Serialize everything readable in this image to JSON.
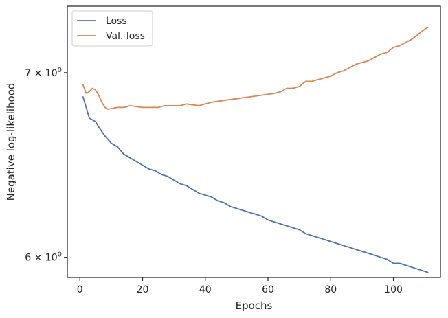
{
  "chart_data": {
    "type": "line",
    "xlabel": "Epochs",
    "ylabel": "Negative log-likelihood",
    "yscale": "log",
    "xlim": [
      -4,
      115
    ],
    "ylim": [
      5.9,
      7.4
    ],
    "x_ticks": [
      0,
      20,
      40,
      60,
      80,
      100
    ],
    "x_tick_labels": [
      "0",
      "20",
      "40",
      "60",
      "80",
      "100"
    ],
    "y_ticks": [
      6,
      7
    ],
    "y_tick_labels": [
      {
        "base": "6 × 10",
        "exp": "0"
      },
      {
        "base": "7 × 10",
        "exp": "0"
      }
    ],
    "grid": false,
    "legend_position": "upper-left",
    "series": [
      {
        "name": "Loss",
        "color": "#4c72b0",
        "points": [
          [
            1,
            6.86
          ],
          [
            2,
            6.8
          ],
          [
            3,
            6.74
          ],
          [
            4,
            6.73
          ],
          [
            5,
            6.72
          ],
          [
            6,
            6.69
          ],
          [
            8,
            6.64
          ],
          [
            10,
            6.6
          ],
          [
            12,
            6.58
          ],
          [
            14,
            6.54
          ],
          [
            16,
            6.52
          ],
          [
            18,
            6.5
          ],
          [
            20,
            6.48
          ],
          [
            22,
            6.46
          ],
          [
            24,
            6.45
          ],
          [
            26,
            6.43
          ],
          [
            28,
            6.42
          ],
          [
            30,
            6.4
          ],
          [
            32,
            6.38
          ],
          [
            34,
            6.37
          ],
          [
            36,
            6.35
          ],
          [
            38,
            6.33
          ],
          [
            40,
            6.32
          ],
          [
            42,
            6.31
          ],
          [
            44,
            6.29
          ],
          [
            46,
            6.28
          ],
          [
            48,
            6.26
          ],
          [
            50,
            6.25
          ],
          [
            52,
            6.24
          ],
          [
            54,
            6.23
          ],
          [
            56,
            6.22
          ],
          [
            58,
            6.21
          ],
          [
            60,
            6.19
          ],
          [
            62,
            6.18
          ],
          [
            64,
            6.17
          ],
          [
            66,
            6.16
          ],
          [
            68,
            6.15
          ],
          [
            70,
            6.14
          ],
          [
            72,
            6.12
          ],
          [
            74,
            6.11
          ],
          [
            76,
            6.1
          ],
          [
            78,
            6.09
          ],
          [
            80,
            6.08
          ],
          [
            82,
            6.07
          ],
          [
            84,
            6.06
          ],
          [
            86,
            6.05
          ],
          [
            88,
            6.04
          ],
          [
            90,
            6.03
          ],
          [
            92,
            6.02
          ],
          [
            94,
            6.01
          ],
          [
            96,
            6.0
          ],
          [
            98,
            5.99
          ],
          [
            100,
            5.97
          ],
          [
            102,
            5.97
          ],
          [
            104,
            5.96
          ],
          [
            106,
            5.95
          ],
          [
            108,
            5.94
          ],
          [
            110,
            5.93
          ],
          [
            111,
            5.925
          ]
        ]
      },
      {
        "name": "Val. loss",
        "color": "#dd8452",
        "points": [
          [
            1,
            6.93
          ],
          [
            2,
            6.88
          ],
          [
            3,
            6.89
          ],
          [
            4,
            6.91
          ],
          [
            5,
            6.9
          ],
          [
            6,
            6.87
          ],
          [
            7,
            6.83
          ],
          [
            8,
            6.8
          ],
          [
            9,
            6.79
          ],
          [
            12,
            6.8
          ],
          [
            14,
            6.8
          ],
          [
            16,
            6.81
          ],
          [
            20,
            6.8
          ],
          [
            25,
            6.8
          ],
          [
            27,
            6.81
          ],
          [
            32,
            6.81
          ],
          [
            34,
            6.82
          ],
          [
            38,
            6.81
          ],
          [
            42,
            6.83
          ],
          [
            46,
            6.84
          ],
          [
            50,
            6.85
          ],
          [
            54,
            6.86
          ],
          [
            58,
            6.87
          ],
          [
            62,
            6.88
          ],
          [
            64,
            6.89
          ],
          [
            66,
            6.91
          ],
          [
            68,
            6.91
          ],
          [
            70,
            6.92
          ],
          [
            72,
            6.95
          ],
          [
            74,
            6.95
          ],
          [
            76,
            6.96
          ],
          [
            78,
            6.97
          ],
          [
            80,
            6.98
          ],
          [
            82,
            7.0
          ],
          [
            84,
            7.01
          ],
          [
            86,
            7.03
          ],
          [
            88,
            7.05
          ],
          [
            90,
            7.06
          ],
          [
            92,
            7.07
          ],
          [
            94,
            7.09
          ],
          [
            96,
            7.11
          ],
          [
            98,
            7.12
          ],
          [
            100,
            7.15
          ],
          [
            102,
            7.16
          ],
          [
            104,
            7.18
          ],
          [
            106,
            7.2
          ],
          [
            108,
            7.23
          ],
          [
            110,
            7.26
          ],
          [
            111,
            7.27
          ]
        ]
      }
    ]
  }
}
